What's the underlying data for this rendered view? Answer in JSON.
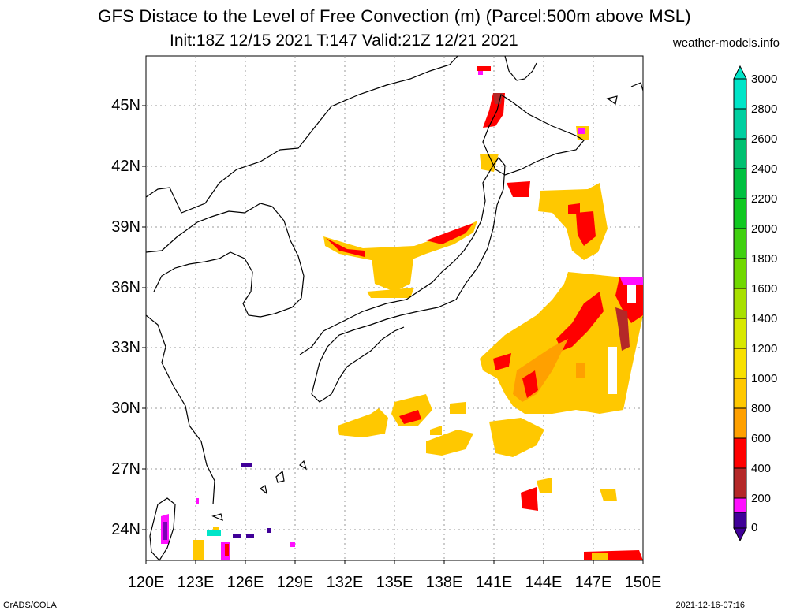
{
  "header": {
    "title_line1": "GFS Distace to the Level of Free Convection (m) (Parcel:500m above MSL)",
    "title_line2": "Init:18Z 12/15 2021 T:147 Valid:21Z 12/21 2021",
    "site": "weather-models.info"
  },
  "footer": {
    "left": "GrADS/COLA",
    "right": "2021-12-16-07:16"
  },
  "axes": {
    "lat_labels": [
      "45N",
      "42N",
      "39N",
      "36N",
      "33N",
      "30N",
      "27N",
      "24N"
    ],
    "lon_labels": [
      "120E",
      "123E",
      "126E",
      "129E",
      "132E",
      "135E",
      "138E",
      "141E",
      "144E",
      "147E",
      "150E"
    ]
  },
  "colorbar": {
    "labels": [
      "3000",
      "2800",
      "2600",
      "2400",
      "2200",
      "2000",
      "1800",
      "1600",
      "1400",
      "1200",
      "1000",
      "800",
      "600",
      "400",
      "200",
      "0"
    ],
    "colors": [
      "#00e5c8",
      "#00cfa0",
      "#00c070",
      "#00c040",
      "#10c820",
      "#40d010",
      "#70d800",
      "#a8e000",
      "#d8e800",
      "#f8e000",
      "#ffc800",
      "#ffa000",
      "#ff0000",
      "#b42828",
      "#ff10ff",
      "#400098"
    ]
  }
}
